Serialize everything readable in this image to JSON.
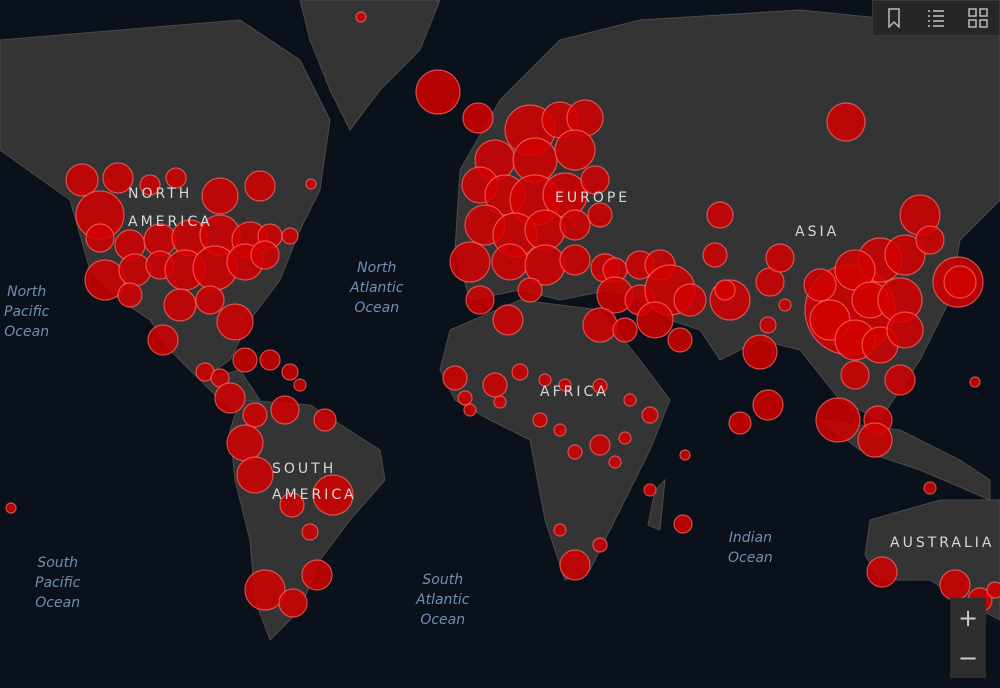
{
  "continent_labels": {
    "north_america": "NORTH\nAMERICA",
    "south_america": "SOUTH\nAMERICA",
    "europe": "EUROPE",
    "africa": "AFRICA",
    "asia": "ASIA",
    "australia": "AUSTRALIA"
  },
  "ocean_labels": {
    "north_pacific": "North\nPacific\nOcean",
    "north_atlantic": "North\nAtlantic\nOcean",
    "south_pacific": "South\nPacific\nOcean",
    "south_atlantic": "South\nAtlantic\nOcean",
    "indian": "Indian\nOcean"
  },
  "toolbar": {
    "icons": [
      "bookmark-icon",
      "list-icon",
      "qr-grid-icon"
    ]
  },
  "zoom_controls": {
    "zoom_in": "+",
    "zoom_out": "−"
  },
  "colors": {
    "background": "#0b111a",
    "land": "#343434",
    "bubble": "#d40000"
  }
}
